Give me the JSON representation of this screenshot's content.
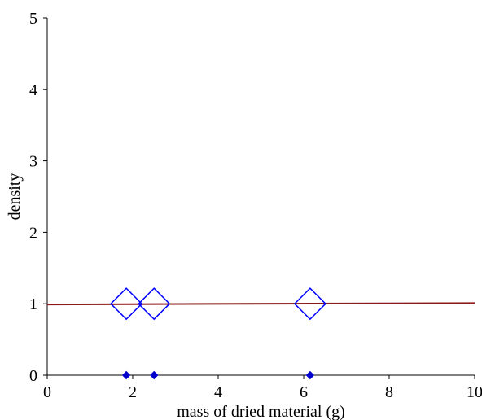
{
  "chart_data": {
    "type": "scatter",
    "title": "",
    "xlabel": "mass of dried material (g)",
    "ylabel": "density",
    "xlim": [
      0,
      10
    ],
    "ylim": [
      0,
      5
    ],
    "x_ticks": [
      0,
      2,
      4,
      6,
      8,
      10
    ],
    "y_ticks": [
      0,
      1,
      2,
      3,
      4,
      5
    ],
    "grid": false,
    "series": [
      {
        "marker": "open-diamond-large",
        "color": "#0000ff",
        "points": [
          {
            "x": 1.85,
            "y": 1.0
          },
          {
            "x": 2.5,
            "y": 1.0
          },
          {
            "x": 6.15,
            "y": 1.0
          }
        ]
      },
      {
        "marker": "filled-diamond-small",
        "color": "#0000cc",
        "points": [
          {
            "x": 1.85,
            "y": 0.0
          },
          {
            "x": 2.5,
            "y": 0.0
          },
          {
            "x": 6.15,
            "y": 0.0
          }
        ]
      }
    ],
    "trendline": {
      "color": "#8b1a1a",
      "points": [
        {
          "x": 0,
          "y": 0.99
        },
        {
          "x": 10,
          "y": 1.01
        }
      ]
    }
  }
}
